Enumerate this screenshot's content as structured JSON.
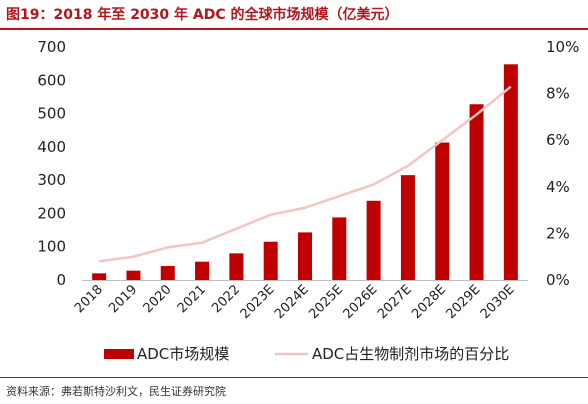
{
  "header": {
    "title": "图19：2018 年至 2030 年 ADC 的全球市场规模（亿美元）"
  },
  "footer": {
    "source": "资料来源：弗若斯特沙利文，民生证券研究院"
  },
  "colors": {
    "accent": "#b3151c",
    "bar": "#c00000",
    "line": "#f2c4c4",
    "axis": "#bfbfbf"
  },
  "chart_data": {
    "type": "bar",
    "categories": [
      "2018",
      "2019",
      "2020",
      "2021",
      "2022",
      "2023E",
      "2024E",
      "2025E",
      "2026E",
      "2027E",
      "2028E",
      "2029E",
      "2030E"
    ],
    "series": [
      {
        "name": "ADC市场规模",
        "type": "bar",
        "axis": "left",
        "values": [
          20,
          28,
          42,
          55,
          80,
          115,
          143,
          188,
          238,
          315,
          413,
          528,
          648
        ]
      },
      {
        "name": "ADC占生物制剂市场的百分比",
        "type": "line",
        "axis": "right",
        "values": [
          0.8,
          1.0,
          1.4,
          1.6,
          2.2,
          2.8,
          3.1,
          3.6,
          4.1,
          4.9,
          6.0,
          7.1,
          8.3
        ]
      }
    ],
    "y_left": {
      "ylim": [
        0,
        700
      ],
      "ticks": [
        0,
        100,
        200,
        300,
        400,
        500,
        600,
        700
      ]
    },
    "y_right": {
      "ylim": [
        0,
        10
      ],
      "ticks": [
        0,
        2,
        4,
        6,
        8,
        10
      ],
      "tick_suffix": "%"
    },
    "legend": {
      "position": "bottom"
    },
    "grid": false
  }
}
